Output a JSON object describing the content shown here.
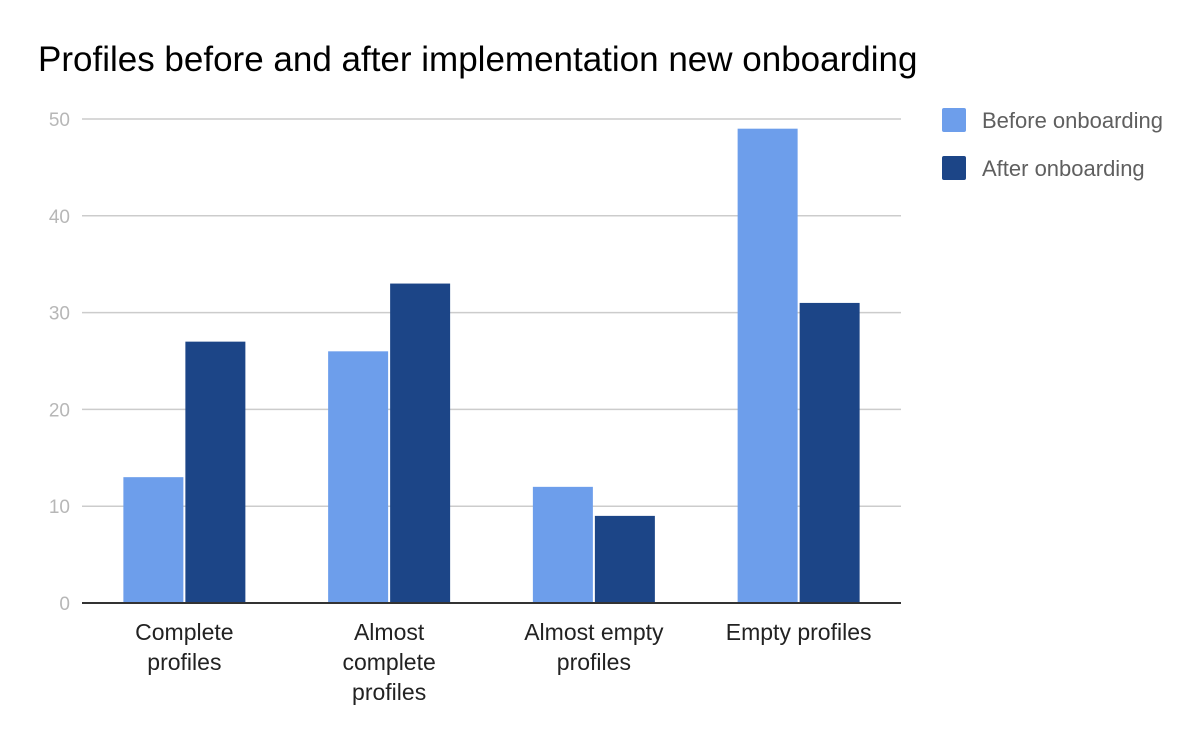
{
  "chart_data": {
    "type": "bar",
    "title": "Profiles before and after implementation new onboarding",
    "categories": [
      [
        "Complete",
        "profiles"
      ],
      [
        "Almost",
        "complete",
        "profiles"
      ],
      [
        "Almost empty",
        "profiles"
      ],
      [
        "Empty profiles"
      ]
    ],
    "series": [
      {
        "name": "Before onboarding",
        "color": "#6d9eeb",
        "values": [
          13,
          26,
          12,
          49
        ]
      },
      {
        "name": "After onboarding",
        "color": "#1c4587",
        "values": [
          27,
          33,
          9,
          31
        ]
      }
    ],
    "yticks": [
      0,
      10,
      20,
      30,
      40,
      50
    ],
    "ylim": [
      0,
      50
    ],
    "grid": true,
    "legend_position": "right"
  }
}
